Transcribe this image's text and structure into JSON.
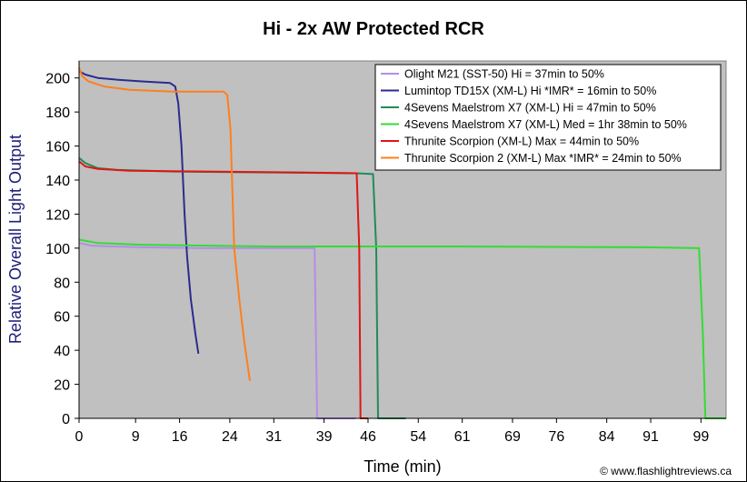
{
  "chart_data": {
    "type": "line",
    "title": "Hi - 2x AW Protected RCR",
    "xlabel": "Time (min)",
    "ylabel": "Relative Overall Light Output",
    "xlim": [
      0,
      103
    ],
    "ylim": [
      0,
      210
    ],
    "x_ticks": [
      0,
      9,
      16,
      24,
      31,
      39,
      46,
      54,
      61,
      69,
      76,
      84,
      91,
      99
    ],
    "y_ticks": [
      0,
      20,
      40,
      60,
      80,
      100,
      120,
      140,
      160,
      180,
      200
    ],
    "grid": false,
    "legend_position": "top-right",
    "copyright": "© www.flashlightreviews.ca",
    "plot_background": "#c0c0c0",
    "series": [
      {
        "name": "Olight M21 (SST-50) Hi = 37min to 50%",
        "color": "#b48de8",
        "points": [
          [
            0,
            103
          ],
          [
            2,
            101.5
          ],
          [
            5,
            101
          ],
          [
            10,
            100.5
          ],
          [
            20,
            100
          ],
          [
            30,
            100
          ],
          [
            36.5,
            100
          ],
          [
            37.5,
            100
          ],
          [
            37.7,
            50
          ],
          [
            37.9,
            0
          ],
          [
            44,
            0
          ]
        ]
      },
      {
        "name": "Lumintop TD15X (XM-L) Hi *IMR* = 16min to 50%",
        "color": "#2b2b8f",
        "points": [
          [
            0,
            204
          ],
          [
            1,
            202
          ],
          [
            3,
            200
          ],
          [
            6,
            199
          ],
          [
            10,
            198
          ],
          [
            14.5,
            197
          ],
          [
            15.3,
            195
          ],
          [
            15.8,
            185
          ],
          [
            16.3,
            160
          ],
          [
            16.8,
            120
          ],
          [
            17.2,
            95
          ],
          [
            17.8,
            70
          ],
          [
            18.5,
            50
          ],
          [
            19,
            38
          ]
        ]
      },
      {
        "name": "4Sevens Maelstrom X7 (XM-L) Hi = 47min to 50%",
        "color": "#228b5a",
        "points": [
          [
            0,
            153
          ],
          [
            1,
            150
          ],
          [
            3,
            147
          ],
          [
            6,
            146
          ],
          [
            15,
            145
          ],
          [
            30,
            144.5
          ],
          [
            44,
            144
          ],
          [
            46.8,
            143.5
          ],
          [
            47.3,
            100
          ],
          [
            47.6,
            0
          ],
          [
            52,
            0
          ]
        ]
      },
      {
        "name": "4Sevens Maelstrom X7 (XM-L) Med = 1hr 38min to 50%",
        "color": "#33dd33",
        "points": [
          [
            0,
            105
          ],
          [
            3,
            103
          ],
          [
            10,
            102
          ],
          [
            30,
            101
          ],
          [
            60,
            101
          ],
          [
            90,
            100.5
          ],
          [
            98.7,
            100
          ],
          [
            99.3,
            50
          ],
          [
            99.7,
            0
          ],
          [
            103,
            0
          ]
        ]
      },
      {
        "name": "Thrunite Scorpion (XM-L) Max = 44min to 50%",
        "color": "#e01515",
        "points": [
          [
            0,
            151
          ],
          [
            1,
            148
          ],
          [
            3,
            146.5
          ],
          [
            8,
            145.5
          ],
          [
            20,
            145
          ],
          [
            35,
            144.5
          ],
          [
            44.2,
            144
          ],
          [
            44.6,
            100
          ],
          [
            44.8,
            0
          ],
          [
            46,
            0
          ]
        ]
      },
      {
        "name": "Thrunite Scorpion 2 (XM-L) Max *IMR* = 24min to 50%",
        "color": "#ff7f1e",
        "points": [
          [
            0,
            206
          ],
          [
            0.5,
            201
          ],
          [
            1.5,
            198
          ],
          [
            4,
            195
          ],
          [
            8,
            193
          ],
          [
            15,
            192
          ],
          [
            23,
            192
          ],
          [
            23.6,
            190
          ],
          [
            24.1,
            170
          ],
          [
            24.7,
            100
          ],
          [
            25.5,
            70
          ],
          [
            26.3,
            45
          ],
          [
            27.2,
            22
          ]
        ]
      }
    ]
  }
}
